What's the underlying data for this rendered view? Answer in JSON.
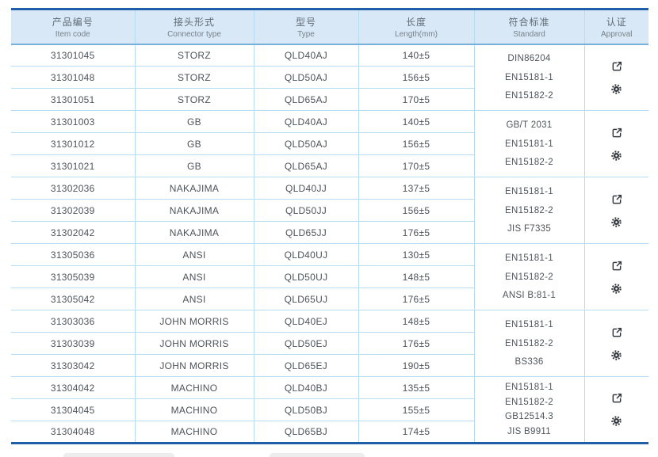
{
  "theme": {
    "accent": "#1f5fa8",
    "header-bg": "#d9e8f6",
    "grid": "#b5dcf1",
    "header-line": "#76b1dc",
    "header-text": "#5f6a74",
    "body-text": "#4e545b",
    "icon-color": "#32373c"
  },
  "table": {
    "columns": [
      {
        "zh": "产品编号",
        "en": "Item code"
      },
      {
        "zh": "接头形式",
        "en": "Connector type"
      },
      {
        "zh": "型号",
        "en": "Type"
      },
      {
        "zh": "长度",
        "en": "Length(mm)"
      },
      {
        "zh": "符合标准",
        "en": "Standard"
      },
      {
        "zh": "认证",
        "en": "Approval"
      }
    ],
    "groups": [
      {
        "rows": [
          {
            "item_code": "31301045",
            "connector": "STORZ",
            "type": "QLD40AJ",
            "length": "140±5"
          },
          {
            "item_code": "31301048",
            "connector": "STORZ",
            "type": "QLD50AJ",
            "length": "156±5"
          },
          {
            "item_code": "31301051",
            "connector": "STORZ",
            "type": "QLD65AJ",
            "length": "170±5"
          }
        ],
        "standards": [
          "DIN86204",
          "EN15181-1",
          "EN15182-2"
        ],
        "approvals": [
          "certificate-icon",
          "seal-icon"
        ]
      },
      {
        "rows": [
          {
            "item_code": "31301003",
            "connector": "GB",
            "type": "QLD40AJ",
            "length": "140±5"
          },
          {
            "item_code": "31301012",
            "connector": "GB",
            "type": "QLD50AJ",
            "length": "156±5"
          },
          {
            "item_code": "31301021",
            "connector": "GB",
            "type": "QLD65AJ",
            "length": "170±5"
          }
        ],
        "standards": [
          "GB/T 2031",
          "EN15181-1",
          "EN15182-2"
        ],
        "approvals": [
          "certificate-icon",
          "seal-icon"
        ]
      },
      {
        "rows": [
          {
            "item_code": "31302036",
            "connector": "NAKAJIMA",
            "type": "QLD40JJ",
            "length": "137±5"
          },
          {
            "item_code": "31302039",
            "connector": "NAKAJIMA",
            "type": "QLD50JJ",
            "length": "156±5"
          },
          {
            "item_code": "31302042",
            "connector": "NAKAJIMA",
            "type": "QLD65JJ",
            "length": "176±5"
          }
        ],
        "standards": [
          "EN15181-1",
          "EN15182-2",
          "JIS F7335"
        ],
        "approvals": [
          "certificate-icon",
          "seal-icon"
        ]
      },
      {
        "rows": [
          {
            "item_code": "31305036",
            "connector": "ANSI",
            "type": "QLD40UJ",
            "length": "130±5"
          },
          {
            "item_code": "31305039",
            "connector": "ANSI",
            "type": "QLD50UJ",
            "length": "148±5"
          },
          {
            "item_code": "31305042",
            "connector": "ANSI",
            "type": "QLD65UJ",
            "length": "176±5"
          }
        ],
        "standards": [
          "EN15181-1",
          "EN15182-2",
          "ANSI B:81-1"
        ],
        "approvals": [
          "certificate-icon",
          "seal-icon"
        ]
      },
      {
        "rows": [
          {
            "item_code": "31303036",
            "connector": "JOHN MORRIS",
            "type": "QLD40EJ",
            "length": "148±5"
          },
          {
            "item_code": "31303039",
            "connector": "JOHN MORRIS",
            "type": "QLD50EJ",
            "length": "176±5"
          },
          {
            "item_code": "31303042",
            "connector": "JOHN MORRIS",
            "type": "QLD65EJ",
            "length": "190±5"
          }
        ],
        "standards": [
          "EN15181-1",
          "EN15182-2",
          "BS336"
        ],
        "approvals": [
          "certificate-icon",
          "seal-icon"
        ]
      },
      {
        "rows": [
          {
            "item_code": "31304042",
            "connector": "MACHINO",
            "type": "QLD40BJ",
            "length": "135±5"
          },
          {
            "item_code": "31304045",
            "connector": "MACHINO",
            "type": "QLD50BJ",
            "length": "155±5"
          },
          {
            "item_code": "31304048",
            "connector": "MACHINO",
            "type": "QLD65BJ",
            "length": "174±5"
          }
        ],
        "standards": [
          "EN15181-1",
          "EN15182-2",
          "GB12514.3",
          "JIS B9911"
        ],
        "approvals": [
          "certificate-icon",
          "seal-icon"
        ]
      }
    ]
  }
}
